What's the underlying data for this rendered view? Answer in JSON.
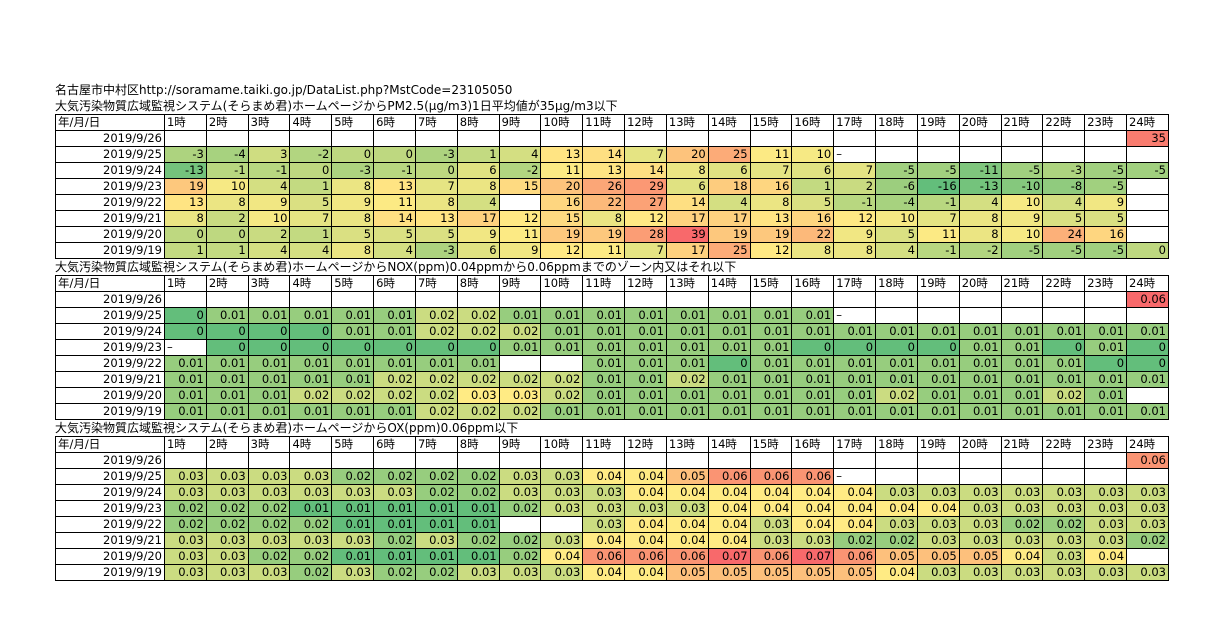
{
  "source_line": "名古屋市中村区http://soramame.taiki.go.jp/DataList.php?MstCode=23105050",
  "hours": [
    "1時",
    "2時",
    "3時",
    "4時",
    "5時",
    "6時",
    "7時",
    "8時",
    "9時",
    "10時",
    "11時",
    "12時",
    "13時",
    "14時",
    "15時",
    "16時",
    "17時",
    "18時",
    "19時",
    "20時",
    "21時",
    "22時",
    "23時",
    "24時"
  ],
  "header_label": "年/月/日",
  "sections": [
    {
      "id": "pm25",
      "title": "大気汚染物質広域監視システム(そらまめ君)ホームページからPM2.5(μg/m3)1日平均値が35μg/m3以下",
      "min": -16,
      "max": 39,
      "rows": [
        {
          "date": "2019/9/26",
          "values": [
            "",
            "",
            "",
            "",
            "",
            "",
            "",
            "",
            "",
            "",
            "",
            "",
            "",
            "",
            "",
            "",
            "",
            "",
            "",
            "",
            "",
            "",
            "",
            "35"
          ]
        },
        {
          "date": "2019/9/25",
          "values": [
            "-3",
            "-4",
            "3",
            "-2",
            "0",
            "0",
            "-3",
            "1",
            "4",
            "13",
            "14",
            "7",
            "20",
            "25",
            "11",
            "10",
            "–",
            "",
            "",
            "",
            "",
            "",
            "",
            ""
          ]
        },
        {
          "date": "2019/9/24",
          "values": [
            "-13",
            "-1",
            "-1",
            "0",
            "-3",
            "-1",
            "0",
            "6",
            "-2",
            "11",
            "13",
            "14",
            "8",
            "6",
            "7",
            "6",
            "7",
            "-5",
            "-5",
            "-11",
            "-5",
            "-3",
            "-5",
            "-5"
          ]
        },
        {
          "date": "2019/9/23",
          "values": [
            "19",
            "10",
            "4",
            "1",
            "8",
            "13",
            "7",
            "8",
            "15",
            "20",
            "26",
            "29",
            "6",
            "18",
            "16",
            "1",
            "2",
            "-6",
            "-16",
            "-13",
            "-10",
            "-8",
            "-5",
            ""
          ]
        },
        {
          "date": "2019/9/22",
          "values": [
            "13",
            "8",
            "9",
            "5",
            "9",
            "11",
            "8",
            "4",
            "",
            "16",
            "22",
            "27",
            "14",
            "4",
            "8",
            "5",
            "-1",
            "-4",
            "-1",
            "4",
            "10",
            "4",
            "9",
            ""
          ]
        },
        {
          "date": "2019/9/21",
          "values": [
            "8",
            "2",
            "10",
            "7",
            "8",
            "14",
            "13",
            "17",
            "12",
            "15",
            "8",
            "12",
            "17",
            "17",
            "13",
            "16",
            "12",
            "10",
            "7",
            "8",
            "9",
            "5",
            "5",
            ""
          ]
        },
        {
          "date": "2019/9/20",
          "values": [
            "0",
            "0",
            "2",
            "1",
            "5",
            "5",
            "5",
            "9",
            "11",
            "19",
            "19",
            "28",
            "39",
            "19",
            "19",
            "22",
            "9",
            "5",
            "11",
            "8",
            "10",
            "24",
            "16",
            ""
          ]
        },
        {
          "date": "2019/9/19",
          "values": [
            "1",
            "1",
            "4",
            "4",
            "8",
            "4",
            "-3",
            "6",
            "9",
            "12",
            "11",
            "7",
            "17",
            "25",
            "12",
            "8",
            "8",
            "4",
            "-1",
            "-2",
            "-5",
            "-5",
            "-5",
            "0"
          ]
        }
      ]
    },
    {
      "id": "nox",
      "title": "大気汚染物質広域監視システム(そらまめ君)ホームページからNOX(ppm)0.04ppmから0.06ppmまでのゾーン内又はそれ以下",
      "min": 0,
      "max": 0.06,
      "rows": [
        {
          "date": "2019/9/26",
          "values": [
            "",
            "",
            "",
            "",
            "",
            "",
            "",
            "",
            "",
            "",
            "",
            "",
            "",
            "",
            "",
            "",
            "",
            "",
            "",
            "",
            "",
            "",
            "",
            "0.06"
          ]
        },
        {
          "date": "2019/9/25",
          "values": [
            "0",
            "0.01",
            "0.01",
            "0.01",
            "0.01",
            "0.01",
            "0.02",
            "0.02",
            "0.01",
            "0.01",
            "0.01",
            "0.01",
            "0.01",
            "0.01",
            "0.01",
            "0.01",
            "–",
            "",
            "",
            "",
            "",
            "",
            "",
            ""
          ]
        },
        {
          "date": "2019/9/24",
          "values": [
            "0",
            "0",
            "0",
            "0",
            "0.01",
            "0.01",
            "0.02",
            "0.02",
            "0.02",
            "0.01",
            "0.01",
            "0.01",
            "0.01",
            "0.01",
            "0.01",
            "0.01",
            "0.01",
            "0.01",
            "0.01",
            "0.01",
            "0.01",
            "0.01",
            "0.01",
            "0.01"
          ]
        },
        {
          "date": "2019/9/23",
          "values": [
            "–",
            "0",
            "0",
            "0",
            "0",
            "0",
            "0",
            "0",
            "0.01",
            "0.01",
            "0.01",
            "0.01",
            "0.01",
            "0.01",
            "0.01",
            "0",
            "0",
            "0",
            "0",
            "0.01",
            "0.01",
            "0",
            "0.01",
            "0"
          ]
        },
        {
          "date": "2019/9/22",
          "values": [
            "0.01",
            "0.01",
            "0.01",
            "0.01",
            "0.01",
            "0.01",
            "0.01",
            "0.01",
            "",
            "",
            "0.01",
            "0.01",
            "0.01",
            "0",
            "0.01",
            "0.01",
            "0.01",
            "0.01",
            "0.01",
            "0.01",
            "0.01",
            "0.01",
            "0",
            "0"
          ]
        },
        {
          "date": "2019/9/21",
          "values": [
            "0.01",
            "0.01",
            "0.01",
            "0.01",
            "0.01",
            "0.02",
            "0.02",
            "0.02",
            "0.02",
            "0.02",
            "0.01",
            "0.01",
            "0.02",
            "0.01",
            "0.01",
            "0.01",
            "0.01",
            "0.01",
            "0.01",
            "0.01",
            "0.01",
            "0.01",
            "0.01",
            "0.01"
          ]
        },
        {
          "date": "2019/9/20",
          "values": [
            "0.01",
            "0.01",
            "0.01",
            "0.02",
            "0.02",
            "0.02",
            "0.02",
            "0.03",
            "0.03",
            "0.02",
            "0.01",
            "0.01",
            "0.01",
            "0.01",
            "0.01",
            "0.01",
            "0.01",
            "0.02",
            "0.01",
            "0.01",
            "0.01",
            "0.02",
            "0.01",
            ""
          ]
        },
        {
          "date": "2019/9/19",
          "values": [
            "0.01",
            "0.01",
            "0.01",
            "0.01",
            "0.01",
            "0.01",
            "0.02",
            "0.02",
            "0.02",
            "0.01",
            "0.01",
            "0.01",
            "0.01",
            "0.01",
            "0.01",
            "0.01",
            "0.01",
            "0.01",
            "0.01",
            "0.01",
            "0.01",
            "0.01",
            "0.01",
            "0.01"
          ]
        }
      ]
    },
    {
      "id": "ox",
      "title": "大気汚染物質広域監視システム(そらまめ君)ホームページからOX(ppm)0.06ppm以下",
      "min": 0.01,
      "max": 0.07,
      "rows": [
        {
          "date": "2019/9/26",
          "values": [
            "",
            "",
            "",
            "",
            "",
            "",
            "",
            "",
            "",
            "",
            "",
            "",
            "",
            "",
            "",
            "",
            "",
            "",
            "",
            "",
            "",
            "",
            "",
            "0.06"
          ]
        },
        {
          "date": "2019/9/25",
          "values": [
            "0.03",
            "0.03",
            "0.03",
            "0.03",
            "0.02",
            "0.02",
            "0.02",
            "0.02",
            "0.03",
            "0.03",
            "0.04",
            "0.04",
            "0.05",
            "0.06",
            "0.06",
            "0.06",
            "–",
            "",
            "",
            "",
            "",
            "",
            "",
            ""
          ]
        },
        {
          "date": "2019/9/24",
          "values": [
            "0.03",
            "0.03",
            "0.03",
            "0.03",
            "0.03",
            "0.03",
            "0.02",
            "0.02",
            "0.03",
            "0.03",
            "0.03",
            "0.04",
            "0.04",
            "0.04",
            "0.04",
            "0.04",
            "0.04",
            "0.03",
            "0.03",
            "0.03",
            "0.03",
            "0.03",
            "0.03",
            "0.03"
          ]
        },
        {
          "date": "2019/9/23",
          "values": [
            "0.02",
            "0.02",
            "0.02",
            "0.01",
            "0.01",
            "0.01",
            "0.01",
            "0.01",
            "0.02",
            "0.03",
            "0.03",
            "0.03",
            "0.03",
            "0.04",
            "0.04",
            "0.04",
            "0.04",
            "0.04",
            "0.04",
            "0.03",
            "0.03",
            "0.03",
            "0.03",
            "0.03"
          ]
        },
        {
          "date": "2019/9/22",
          "values": [
            "0.02",
            "0.02",
            "0.02",
            "0.02",
            "0.01",
            "0.01",
            "0.01",
            "0.01",
            "",
            "",
            "0.03",
            "0.04",
            "0.04",
            "0.04",
            "0.03",
            "0.04",
            "0.04",
            "0.03",
            "0.03",
            "0.03",
            "0.02",
            "0.02",
            "0.03",
            "0.03"
          ]
        },
        {
          "date": "2019/9/21",
          "values": [
            "0.03",
            "0.03",
            "0.03",
            "0.03",
            "0.03",
            "0.02",
            "0.03",
            "0.02",
            "0.02",
            "0.03",
            "0.04",
            "0.04",
            "0.04",
            "0.04",
            "0.03",
            "0.03",
            "0.02",
            "0.02",
            "0.03",
            "0.03",
            "0.03",
            "0.03",
            "0.03",
            "0.02"
          ]
        },
        {
          "date": "2019/9/20",
          "values": [
            "0.03",
            "0.03",
            "0.02",
            "0.02",
            "0.01",
            "0.01",
            "0.01",
            "0.01",
            "0.02",
            "0.04",
            "0.06",
            "0.06",
            "0.06",
            "0.07",
            "0.06",
            "0.07",
            "0.06",
            "0.05",
            "0.05",
            "0.05",
            "0.04",
            "0.03",
            "0.04",
            ""
          ]
        },
        {
          "date": "2019/9/19",
          "values": [
            "0.03",
            "0.03",
            "0.03",
            "0.02",
            "0.03",
            "0.02",
            "0.02",
            "0.03",
            "0.03",
            "0.03",
            "0.04",
            "0.04",
            "0.05",
            "0.05",
            "0.05",
            "0.05",
            "0.05",
            "0.04",
            "0.03",
            "0.03",
            "0.03",
            "0.03",
            "0.03",
            "0.03"
          ]
        }
      ]
    }
  ]
}
